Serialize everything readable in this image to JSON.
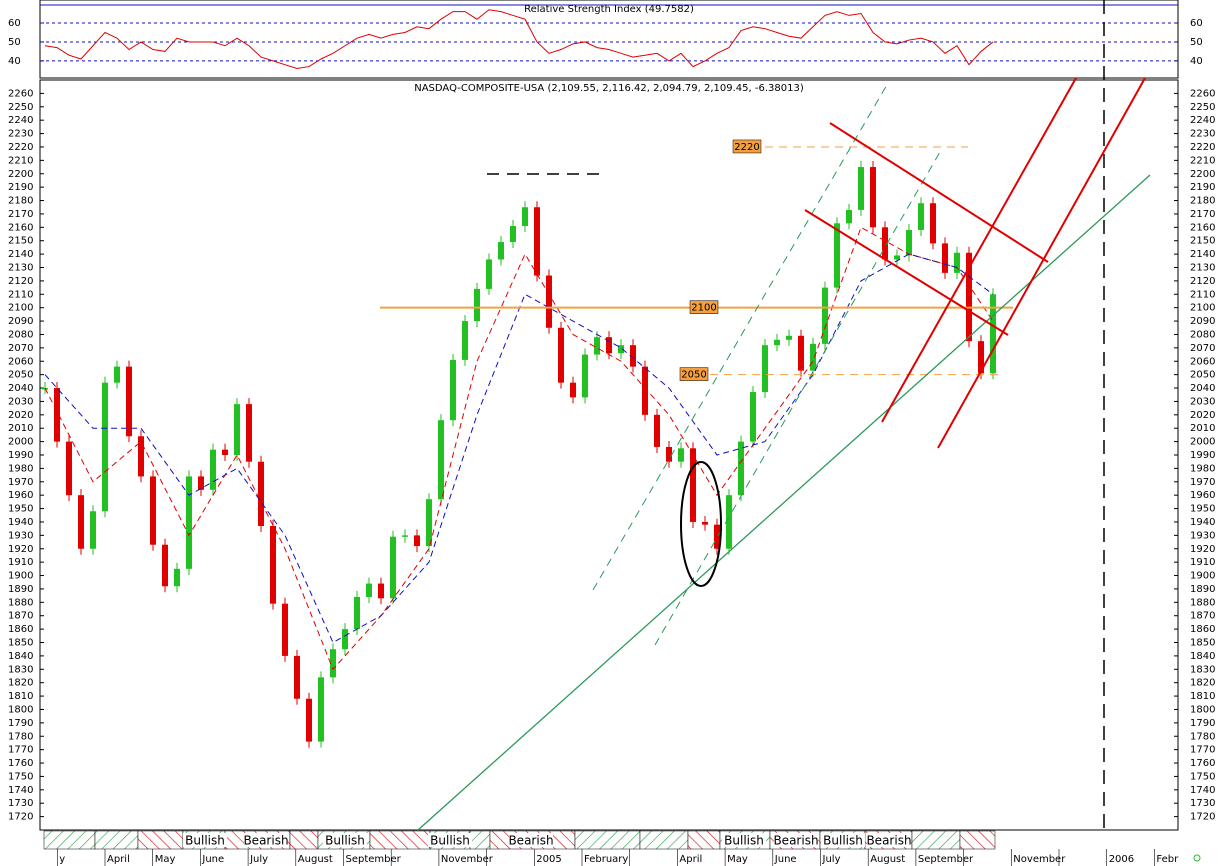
{
  "chart_data": [
    {
      "type": "line",
      "title": "Relative Strength Index (49.7582)",
      "ylim": [
        31.5,
        69.5
      ],
      "yticks": [
        40,
        50,
        60
      ],
      "grid": true,
      "series": [
        {
          "color": "#e00000",
          "values": [
            48,
            47,
            43,
            41,
            48,
            55,
            52,
            46,
            50,
            46,
            45,
            52,
            50,
            50,
            50,
            48,
            52,
            48,
            42,
            40,
            38,
            36,
            37,
            41,
            44,
            48,
            52,
            54,
            52,
            54,
            55,
            58,
            57,
            62,
            66,
            66,
            62,
            67,
            66,
            64,
            62,
            50,
            44,
            46,
            49,
            50,
            47,
            46,
            44,
            42,
            43,
            44,
            40,
            44,
            37,
            40,
            44,
            47,
            56,
            58,
            57,
            55,
            53,
            52,
            58,
            64,
            66,
            64,
            65,
            55,
            50,
            49,
            51,
            52,
            50,
            44,
            48,
            38,
            45,
            50
          ]
        }
      ]
    },
    {
      "type": "candlestick",
      "title": "NASDAQ-COMPOSITE-USA (2,109.55, 2,116.42, 2,094.79, 2,109.45, -6.38013)",
      "ylim": [
        1710,
        2270
      ],
      "yticks": [
        1720,
        1730,
        1740,
        1750,
        1760,
        1770,
        1780,
        1790,
        1800,
        1810,
        1820,
        1830,
        1840,
        1850,
        1860,
        1870,
        1880,
        1890,
        1900,
        1910,
        1920,
        1930,
        1940,
        1950,
        1960,
        1970,
        1980,
        1990,
        2000,
        2010,
        2020,
        2030,
        2040,
        2050,
        2060,
        2070,
        2080,
        2090,
        2100,
        2110,
        2120,
        2130,
        2140,
        2150,
        2160,
        2170,
        2180,
        2190,
        2200,
        2210,
        2220,
        2230,
        2240,
        2250,
        2260
      ],
      "up_color": "#22c022",
      "down_color": "#e00000",
      "close": [
        2040,
        2000,
        1960,
        1920,
        1948,
        2044,
        2056,
        2004,
        1974,
        1923,
        1892,
        1905,
        1974,
        1964,
        1994,
        1990,
        2028,
        1985,
        1937,
        1879,
        1840,
        1808,
        1776,
        1824,
        1845,
        1860,
        1884,
        1894,
        1883,
        1929,
        1930,
        1922,
        1957,
        2016,
        2061,
        2090,
        2114,
        2136,
        2149,
        2161,
        2175,
        2124,
        2085,
        2044,
        2033,
        2065,
        2078,
        2066,
        2072,
        2056,
        2020,
        1996,
        1985,
        1995,
        1940,
        1938,
        1920,
        1960,
        2000,
        2037,
        2072,
        2076,
        2079,
        2053,
        2073,
        2115,
        2163,
        2173,
        2205,
        2160,
        2136,
        2139,
        2158,
        2178,
        2148,
        2126,
        2141,
        2075,
        2051,
        2110
      ],
      "series": [
        {
          "color": "#e00000",
          "x": [
            0,
            4,
            8,
            12,
            16,
            20,
            24,
            28,
            32,
            36,
            40,
            44,
            48,
            52,
            56,
            60,
            64,
            68,
            72,
            76,
            79
          ],
          "values": [
            2040,
            1970,
            2000,
            1930,
            1990,
            1920,
            1830,
            1870,
            1920,
            2060,
            2140,
            2080,
            2060,
            2020,
            1960,
            2010,
            2060,
            2160,
            2140,
            2130,
            2090
          ]
        },
        {
          "color": "#1010c0",
          "x": [
            0,
            4,
            8,
            12,
            16,
            20,
            24,
            28,
            32,
            36,
            40,
            44,
            48,
            52,
            56,
            60,
            64,
            68,
            72,
            76,
            79
          ],
          "values": [
            2050,
            2010,
            2010,
            1960,
            1980,
            1930,
            1850,
            1870,
            1910,
            2020,
            2110,
            2090,
            2070,
            2040,
            1990,
            2000,
            2050,
            2120,
            2140,
            2130,
            2110
          ]
        }
      ],
      "levels": [
        2220,
        2100,
        2050
      ],
      "signals": [
        "Bullish",
        "Bearish",
        "Bullish",
        "Bullish",
        "Bearish",
        "Bullish",
        "Bearish",
        "Bullish",
        "Bearish"
      ],
      "categories": [
        "y",
        "April",
        "May",
        "June",
        "July",
        "August",
        "September",
        null,
        "November",
        null,
        "2005",
        "February",
        null,
        "April",
        "May",
        "June",
        "July",
        "August",
        "September",
        null,
        "November",
        null,
        "2006",
        "Febr"
      ]
    }
  ]
}
